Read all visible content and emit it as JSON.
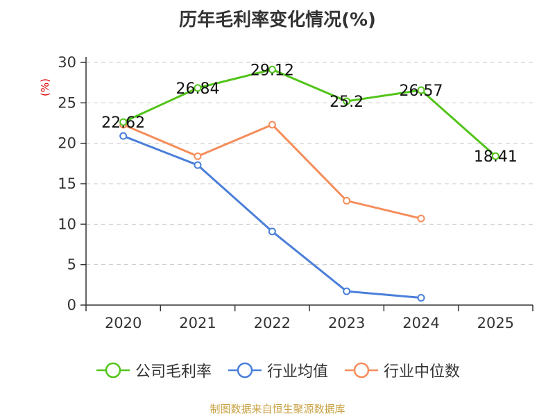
{
  "chart_data": {
    "type": "line",
    "title": "历年毛利率变化情况(%)",
    "ylabel": "(%)",
    "xlabel": "",
    "categories": [
      "2020",
      "2021",
      "2022",
      "2023",
      "2024",
      "2025"
    ],
    "ylim": [
      0,
      30
    ],
    "yticks": [
      0,
      5,
      10,
      15,
      20,
      25,
      30
    ],
    "grid": true,
    "legend_position": "bottom",
    "series": [
      {
        "name": "公司毛利率",
        "color": "#52c41a",
        "values": [
          22.62,
          26.84,
          29.12,
          25.2,
          26.57,
          18.41
        ],
        "show_labels": true
      },
      {
        "name": "行业均值",
        "color": "#4a7fd9",
        "values": [
          20.9,
          17.3,
          9.1,
          1.7,
          0.9,
          null
        ],
        "show_labels": false
      },
      {
        "name": "行业中位数",
        "color": "#f58d5a",
        "values": [
          22.3,
          18.4,
          22.3,
          12.9,
          10.7,
          null
        ],
        "show_labels": false
      }
    ]
  },
  "source": "制图数据来自恒生聚源数据库"
}
